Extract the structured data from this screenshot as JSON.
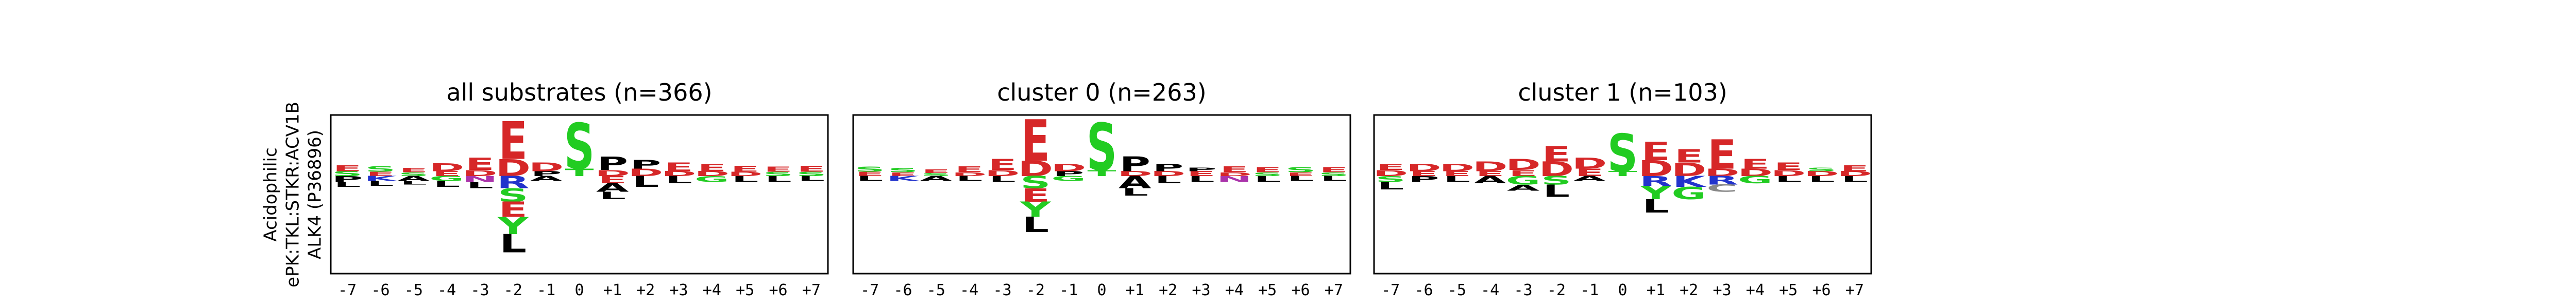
{
  "chart_data": [
    {
      "type": "logo",
      "title": "all substrates (n=366)",
      "ylabel": [
        "Acidophilic",
        "ePK:TKL:STKR:ACV1B",
        "ALK4 (P36896)"
      ],
      "categories": [
        "-7",
        "-6",
        "-5",
        "-4",
        "-3",
        "-2",
        "-1",
        "0",
        "+1",
        "+2",
        "+3",
        "+4",
        "+5",
        "+6",
        "+7"
      ],
      "ylim": [
        -1.6,
        1
      ],
      "letter_colors": {
        "E": "#d62728",
        "D": "#d62728",
        "S": "#22cc22",
        "T": "#22cc22",
        "G": "#22cc22",
        "Y": "#22cc22",
        "P": "#000000",
        "L": "#000000",
        "A": "#000000",
        "K": "#2233cc",
        "R": "#2233cc",
        "N": "#aa33aa",
        "Q": "#aa33aa"
      },
      "stacks": [
        [
          {
            "letter": "S",
            "value": 0.08
          },
          {
            "letter": "E",
            "value": 0.1
          },
          {
            "letter": "P",
            "value": -0.1
          },
          {
            "letter": "L",
            "value": -0.08
          }
        ],
        [
          {
            "letter": "E",
            "value": 0.07
          },
          {
            "letter": "S",
            "value": 0.09
          },
          {
            "letter": "K",
            "value": -0.08
          },
          {
            "letter": "L",
            "value": -0.08
          }
        ],
        [
          {
            "letter": "S",
            "value": 0.06
          },
          {
            "letter": "E",
            "value": 0.07
          },
          {
            "letter": "A",
            "value": -0.08
          },
          {
            "letter": "L",
            "value": -0.06
          }
        ],
        [
          {
            "letter": "E",
            "value": 0.08
          },
          {
            "letter": "D",
            "value": 0.13
          },
          {
            "letter": "G",
            "value": -0.08
          },
          {
            "letter": "L",
            "value": -0.1
          }
        ],
        [
          {
            "letter": "D",
            "value": 0.1
          },
          {
            "letter": "E",
            "value": 0.2
          },
          {
            "letter": "N",
            "value": -0.1
          },
          {
            "letter": "L",
            "value": -0.1
          }
        ],
        [
          {
            "letter": "D",
            "value": 0.28
          },
          {
            "letter": "E",
            "value": 0.62
          },
          {
            "letter": "R",
            "value": -0.2
          },
          {
            "letter": "S",
            "value": -0.22
          },
          {
            "letter": "E",
            "value": -0.25
          },
          {
            "letter": "Y",
            "value": -0.28
          },
          {
            "letter": "L",
            "value": -0.3
          }
        ],
        [
          {
            "letter": "P",
            "value": 0.08
          },
          {
            "letter": "D",
            "value": 0.14
          },
          {
            "letter": "A",
            "value": -0.08
          }
        ],
        [
          {
            "letter": "T",
            "value": 0.12
          },
          {
            "letter": "S",
            "value": 0.75
          }
        ],
        [
          {
            "letter": "D",
            "value": 0.1
          },
          {
            "letter": "P",
            "value": 0.22
          },
          {
            "letter": "E",
            "value": -0.12
          },
          {
            "letter": "A",
            "value": -0.14
          },
          {
            "letter": "L",
            "value": -0.12
          }
        ],
        [
          {
            "letter": "D",
            "value": 0.12
          },
          {
            "letter": "P",
            "value": 0.14
          },
          {
            "letter": "L",
            "value": -0.18
          }
        ],
        [
          {
            "letter": "D",
            "value": 0.08
          },
          {
            "letter": "E",
            "value": 0.14
          },
          {
            "letter": "L",
            "value": -0.12
          }
        ],
        [
          {
            "letter": "D",
            "value": 0.08
          },
          {
            "letter": "E",
            "value": 0.12
          },
          {
            "letter": "G",
            "value": -0.1
          }
        ],
        [
          {
            "letter": "D",
            "value": 0.07
          },
          {
            "letter": "E",
            "value": 0.1
          },
          {
            "letter": "L",
            "value": -0.1
          }
        ],
        [
          {
            "letter": "S",
            "value": 0.07
          },
          {
            "letter": "E",
            "value": 0.08
          },
          {
            "letter": "L",
            "value": -0.1
          }
        ],
        [
          {
            "letter": "S",
            "value": 0.07
          },
          {
            "letter": "E",
            "value": 0.1
          },
          {
            "letter": "L",
            "value": -0.08
          }
        ]
      ]
    },
    {
      "type": "logo",
      "title": "cluster 0 (n=263)",
      "categories": [
        "-7",
        "-6",
        "-5",
        "-4",
        "-3",
        "-2",
        "-1",
        "0",
        "+1",
        "+2",
        "+3",
        "+4",
        "+5",
        "+6",
        "+7"
      ],
      "ylim": [
        -1.6,
        1
      ],
      "stacks": [
        [
          {
            "letter": "E",
            "value": 0.07
          },
          {
            "letter": "S",
            "value": 0.08
          },
          {
            "letter": "L",
            "value": -0.08
          }
        ],
        [
          {
            "letter": "E",
            "value": 0.06
          },
          {
            "letter": "S",
            "value": 0.07
          },
          {
            "letter": "K",
            "value": -0.08
          }
        ],
        [
          {
            "letter": "S",
            "value": 0.05
          },
          {
            "letter": "E",
            "value": 0.06
          },
          {
            "letter": "A",
            "value": -0.08
          }
        ],
        [
          {
            "letter": "D",
            "value": 0.06
          },
          {
            "letter": "E",
            "value": 0.1
          },
          {
            "letter": "L",
            "value": -0.08
          }
        ],
        [
          {
            "letter": "D",
            "value": 0.1
          },
          {
            "letter": "E",
            "value": 0.18
          },
          {
            "letter": "L",
            "value": -0.1
          }
        ],
        [
          {
            "letter": "D",
            "value": 0.25
          },
          {
            "letter": "E",
            "value": 0.68
          },
          {
            "letter": "S",
            "value": -0.2
          },
          {
            "letter": "E",
            "value": -0.22
          },
          {
            "letter": "Y",
            "value": -0.25
          },
          {
            "letter": "L",
            "value": -0.25
          }
        ],
        [
          {
            "letter": "P",
            "value": 0.08
          },
          {
            "letter": "D",
            "value": 0.12
          },
          {
            "letter": "G",
            "value": -0.08
          }
        ],
        [
          {
            "letter": "T",
            "value": 0.1
          },
          {
            "letter": "S",
            "value": 0.78
          }
        ],
        [
          {
            "letter": "D",
            "value": 0.08
          },
          {
            "letter": "P",
            "value": 0.24
          },
          {
            "letter": "A",
            "value": -0.2
          },
          {
            "letter": "L",
            "value": -0.12
          }
        ],
        [
          {
            "letter": "D",
            "value": 0.08
          },
          {
            "letter": "P",
            "value": 0.12
          },
          {
            "letter": "L",
            "value": -0.12
          }
        ],
        [
          {
            "letter": "E",
            "value": 0.08
          },
          {
            "letter": "P",
            "value": 0.06
          },
          {
            "letter": "L",
            "value": -0.1
          }
        ],
        [
          {
            "letter": "D",
            "value": 0.06
          },
          {
            "letter": "E",
            "value": 0.1
          },
          {
            "letter": "N",
            "value": -0.1
          }
        ],
        [
          {
            "letter": "S",
            "value": 0.06
          },
          {
            "letter": "E",
            "value": 0.08
          },
          {
            "letter": "L",
            "value": -0.1
          }
        ],
        [
          {
            "letter": "E",
            "value": 0.06
          },
          {
            "letter": "S",
            "value": 0.08
          },
          {
            "letter": "L",
            "value": -0.08
          }
        ],
        [
          {
            "letter": "S",
            "value": 0.06
          },
          {
            "letter": "E",
            "value": 0.08
          },
          {
            "letter": "L",
            "value": -0.08
          }
        ]
      ]
    },
    {
      "type": "logo",
      "title": "cluster 1 (n=103)",
      "categories": [
        "-7",
        "-6",
        "-5",
        "-4",
        "-3",
        "-2",
        "-1",
        "0",
        "+1",
        "+2",
        "+3",
        "+4",
        "+5",
        "+6",
        "+7"
      ],
      "ylim": [
        -1.6,
        1
      ],
      "stacks": [
        [
          {
            "letter": "D",
            "value": 0.1
          },
          {
            "letter": "E",
            "value": 0.1
          },
          {
            "letter": "S",
            "value": -0.1
          },
          {
            "letter": "L",
            "value": -0.12
          }
        ],
        [
          {
            "letter": "E",
            "value": 0.08
          },
          {
            "letter": "D",
            "value": 0.12
          },
          {
            "letter": "P",
            "value": -0.1
          }
        ],
        [
          {
            "letter": "E",
            "value": 0.08
          },
          {
            "letter": "D",
            "value": 0.12
          },
          {
            "letter": "L",
            "value": -0.1
          }
        ],
        [
          {
            "letter": "E",
            "value": 0.08
          },
          {
            "letter": "D",
            "value": 0.16
          },
          {
            "letter": "A",
            "value": -0.12
          }
        ],
        [
          {
            "letter": "E",
            "value": 0.1
          },
          {
            "letter": "D",
            "value": 0.18
          },
          {
            "letter": "G",
            "value": -0.14
          },
          {
            "letter": "A",
            "value": -0.1
          }
        ],
        [
          {
            "letter": "D",
            "value": 0.24
          },
          {
            "letter": "E",
            "value": 0.25
          },
          {
            "letter": "S",
            "value": -0.14
          },
          {
            "letter": "L",
            "value": -0.2
          }
        ],
        [
          {
            "letter": "E",
            "value": 0.12
          },
          {
            "letter": "D",
            "value": 0.18
          },
          {
            "letter": "A",
            "value": -0.08
          }
        ],
        [
          {
            "letter": "T",
            "value": 0.08
          },
          {
            "letter": "S",
            "value": 0.62
          }
        ],
        [
          {
            "letter": "D",
            "value": 0.26
          },
          {
            "letter": "E",
            "value": 0.3
          },
          {
            "letter": "R",
            "value": -0.16
          },
          {
            "letter": "Y",
            "value": -0.22
          },
          {
            "letter": "L",
            "value": -0.22
          }
        ],
        [
          {
            "letter": "D",
            "value": 0.22
          },
          {
            "letter": "E",
            "value": 0.22
          },
          {
            "letter": "K",
            "value": -0.18
          },
          {
            "letter": "G",
            "value": -0.2
          }
        ],
        [
          {
            "letter": "D",
            "value": 0.12
          },
          {
            "letter": "E",
            "value": 0.48
          },
          {
            "letter": "R",
            "value": -0.14
          },
          {
            "letter": "C",
            "value": -0.12
          }
        ],
        [
          {
            "letter": "D",
            "value": 0.12
          },
          {
            "letter": "E",
            "value": 0.16
          },
          {
            "letter": "G",
            "value": -0.12
          }
        ],
        [
          {
            "letter": "D",
            "value": 0.1
          },
          {
            "letter": "E",
            "value": 0.12
          },
          {
            "letter": "L",
            "value": -0.1
          }
        ],
        [
          {
            "letter": "D",
            "value": 0.08
          },
          {
            "letter": "S",
            "value": 0.06
          },
          {
            "letter": "L",
            "value": -0.1
          }
        ],
        [
          {
            "letter": "D",
            "value": 0.08
          },
          {
            "letter": "E",
            "value": 0.1
          },
          {
            "letter": "L",
            "value": -0.1
          }
        ]
      ]
    }
  ]
}
